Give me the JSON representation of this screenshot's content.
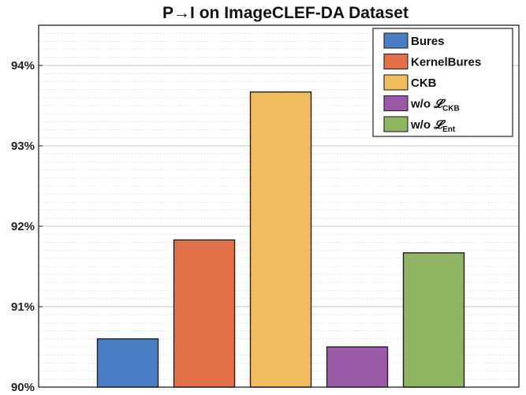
{
  "chart_data": {
    "type": "bar",
    "title": "P→I on ImageCLEF-DA Dataset",
    "xlabel": "",
    "ylabel": "",
    "categories": [
      "Bures",
      "KernelBures",
      "CKB",
      "w/o 𝓛CKB",
      "w/o 𝓛Ent"
    ],
    "values": [
      90.6,
      91.83,
      93.67,
      90.5,
      91.67
    ],
    "unit": "%",
    "ylim": [
      90,
      94.5
    ],
    "yticks": [
      90,
      91,
      92,
      93,
      94
    ],
    "ytick_labels": [
      "90%",
      "91%",
      "92%",
      "93%",
      "94%"
    ],
    "minor_grid": true,
    "grid": true,
    "legend_position": "top-right",
    "legend": [
      {
        "label": "Bures",
        "color": "#4a7ec4"
      },
      {
        "label": "KernelBures",
        "color": "#e2714a"
      },
      {
        "label": "CKB",
        "color": "#f0bc5e"
      },
      {
        "label": "w/o ",
        "script": "𝓛",
        "sub": "CKB",
        "color": "#9a5aa8"
      },
      {
        "label": "w/o ",
        "script": "𝓛",
        "sub": "Ent",
        "color": "#8fb462"
      }
    ]
  }
}
